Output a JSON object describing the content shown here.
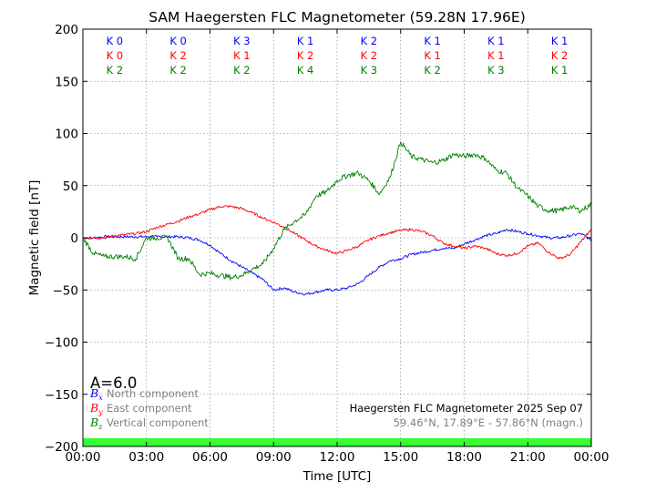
{
  "chart_data": {
    "type": "line",
    "title": "SAM Haegersten FLC Magnetometer (59.28N 17.96E)",
    "xlabel": "Time [UTC]",
    "ylabel": "Magnetic field [nT]",
    "xlim": [
      0,
      24
    ],
    "ylim": [
      -200,
      200
    ],
    "x_ticks": [
      0,
      3,
      6,
      9,
      12,
      15,
      18,
      21,
      24
    ],
    "x_tick_labels": [
      "00:00",
      "03:00",
      "06:00",
      "09:00",
      "12:00",
      "15:00",
      "18:00",
      "21:00",
      "00:00"
    ],
    "y_ticks": [
      -200,
      -150,
      -100,
      -50,
      0,
      50,
      100,
      150,
      200
    ],
    "y_tick_labels": [
      "−200",
      "−150",
      "−100",
      "−50",
      "0",
      "50",
      "100",
      "150",
      "200"
    ],
    "grid": true,
    "k_index": {
      "rows": [
        {
          "color": "#0000ff",
          "labels": [
            "K 0",
            "K 0",
            "K 3",
            "K 1",
            "K 2",
            "K 1",
            "K 1",
            "K 1"
          ]
        },
        {
          "color": "#ff0000",
          "labels": [
            "K 0",
            "K 2",
            "K 1",
            "K 2",
            "K 2",
            "K 1",
            "K 1",
            "K 2"
          ]
        },
        {
          "color": "#008000",
          "labels": [
            "K 2",
            "K 2",
            "K 2",
            "K 4",
            "K 3",
            "K 2",
            "K 3",
            "K 1"
          ]
        }
      ]
    },
    "a_index_text": "A=6.0",
    "station_text": "Haegersten FLC Magnetometer 2025 Sep 07",
    "coords_text": "59.46°N, 17.89°E - 57.86°N (magn.)",
    "activity_bar_color": "#33ff33",
    "series": [
      {
        "name": "North component",
        "symbol": "B",
        "subscript": "x",
        "color": "#0000ff",
        "x": [
          0,
          0.5,
          1,
          1.5,
          2,
          2.5,
          3,
          3.5,
          4,
          4.5,
          5,
          5.5,
          6,
          6.5,
          7,
          7.5,
          8,
          8.5,
          9,
          9.5,
          10,
          10.5,
          11,
          11.5,
          12,
          12.5,
          13,
          13.5,
          14,
          14.5,
          15,
          15.5,
          16,
          16.5,
          17,
          17.5,
          18,
          18.5,
          19,
          19.5,
          20,
          20.5,
          21,
          21.5,
          22,
          22.5,
          23,
          23.5,
          24
        ],
        "values": [
          0,
          0,
          1,
          1,
          1,
          1,
          1,
          1,
          1,
          1,
          0,
          -2,
          -7,
          -15,
          -22,
          -28,
          -34,
          -40,
          -50,
          -48,
          -52,
          -54,
          -52,
          -50,
          -50,
          -48,
          -44,
          -36,
          -28,
          -22,
          -20,
          -16,
          -14,
          -12,
          -10,
          -10,
          -6,
          -2,
          2,
          4,
          8,
          6,
          4,
          2,
          0,
          0,
          2,
          4,
          -2
        ]
      },
      {
        "name": "East component",
        "symbol": "B",
        "subscript": "y",
        "color": "#ff0000",
        "x": [
          0,
          0.5,
          1,
          1.5,
          2,
          2.5,
          3,
          3.5,
          4,
          4.5,
          5,
          5.5,
          6,
          6.5,
          7,
          7.5,
          8,
          8.5,
          9,
          9.5,
          10,
          10.5,
          11,
          11.5,
          12,
          12.5,
          13,
          13.5,
          14,
          14.5,
          15,
          15.5,
          16,
          16.5,
          17,
          17.5,
          18,
          18.5,
          19,
          19.5,
          20,
          20.5,
          21,
          21.5,
          22,
          22.5,
          23,
          23.5,
          24
        ],
        "values": [
          0,
          0,
          0,
          2,
          3,
          4,
          6,
          10,
          13,
          16,
          20,
          23,
          27,
          30,
          30,
          28,
          24,
          19,
          15,
          10,
          4,
          -2,
          -8,
          -12,
          -15,
          -12,
          -8,
          -2,
          2,
          5,
          7,
          8,
          6,
          2,
          -5,
          -8,
          -10,
          -8,
          -10,
          -15,
          -17,
          -15,
          -8,
          -5,
          -14,
          -20,
          -16,
          -4,
          8
        ]
      },
      {
        "name": "Vertical component",
        "symbol": "B",
        "subscript": "z",
        "color": "#008000",
        "x": [
          0,
          0.5,
          1,
          1.5,
          2,
          2.5,
          3,
          3.5,
          4,
          4.5,
          5,
          5.5,
          6,
          6.5,
          7,
          7.5,
          8,
          8.5,
          9,
          9.5,
          10,
          10.5,
          11,
          11.5,
          12,
          12.5,
          13,
          13.5,
          14,
          14.5,
          15,
          15.5,
          16,
          16.5,
          17,
          17.5,
          18,
          18.5,
          19,
          19.5,
          20,
          20.5,
          21,
          21.5,
          22,
          22.5,
          23,
          23.5,
          24
        ],
        "values": [
          0,
          -15,
          -18,
          -18,
          -18,
          -20,
          0,
          0,
          0,
          -20,
          -20,
          -35,
          -34,
          -36,
          -38,
          -36,
          -30,
          -25,
          -10,
          8,
          16,
          22,
          40,
          44,
          55,
          60,
          62,
          55,
          42,
          58,
          92,
          78,
          75,
          72,
          74,
          80,
          78,
          80,
          76,
          65,
          62,
          48,
          40,
          30,
          26,
          26,
          30,
          26,
          32
        ]
      }
    ]
  }
}
